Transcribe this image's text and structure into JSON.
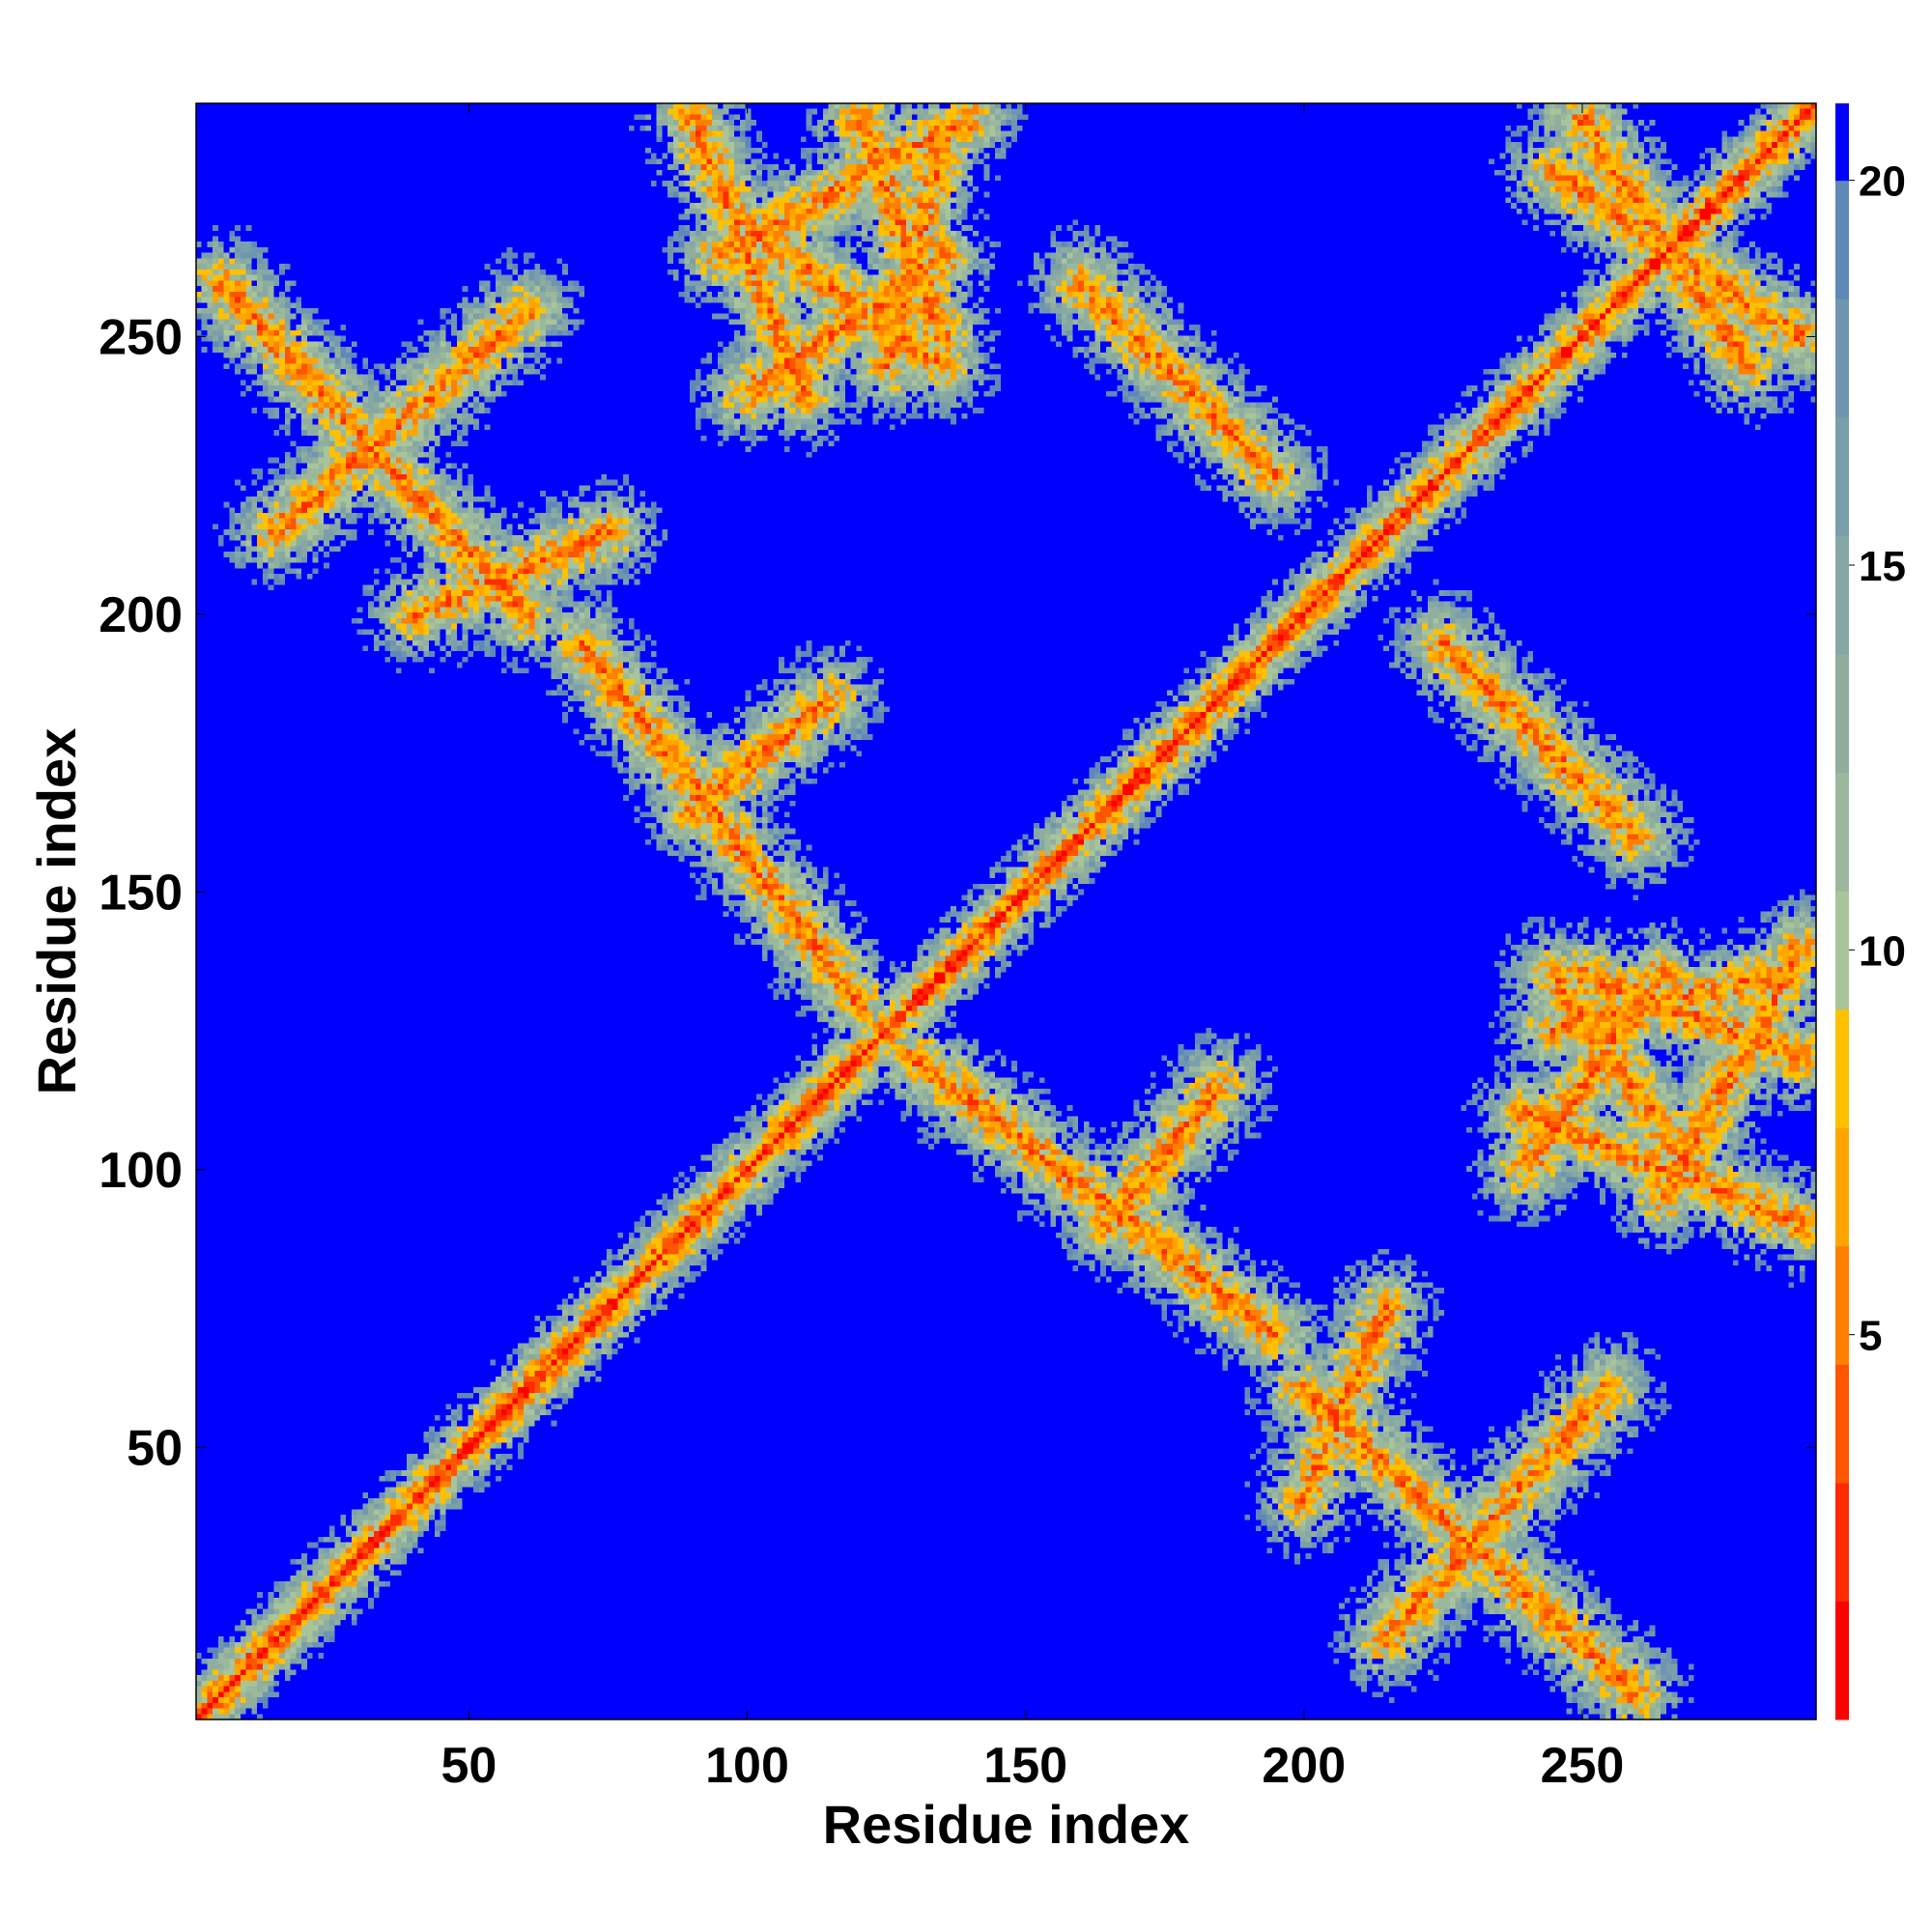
{
  "chart_data": {
    "type": "heatmap",
    "title": "",
    "xlabel": "Residue index",
    "ylabel": "Residue index",
    "n_residues": 292,
    "xlim": [
      1,
      292
    ],
    "ylim": [
      1,
      292
    ],
    "x_ticks": [
      50,
      100,
      150,
      200,
      250
    ],
    "y_ticks": [
      50,
      100,
      150,
      200,
      250
    ],
    "colorbar": {
      "ticks": [
        5,
        10,
        15,
        20
      ],
      "range": [
        0,
        21
      ],
      "cutoff_value": 20,
      "colors": [
        "#ff0000",
        "#ff2a00",
        "#ff5500",
        "#ff8000",
        "#ffa500",
        "#ffc000",
        "#a8c49a",
        "#9cb89c",
        "#8fae9e",
        "#86a8a4",
        "#7a9faa",
        "#6f96b0",
        "#5f88b8",
        "#0000ff"
      ]
    },
    "matrix_description": "Symmetric residue distance map; distance values capped at 20+",
    "contact_bands": [
      {
        "type": "diagonal",
        "note": "main diagonal, values near 0"
      },
      {
        "i_start": 5,
        "j_start": 260,
        "i_end": 60,
        "j_end": 200
      },
      {
        "i_start": 15,
        "j_start": 215,
        "i_end": 60,
        "j_end": 255
      },
      {
        "i_start": 40,
        "j_start": 200,
        "i_end": 75,
        "j_end": 215
      },
      {
        "i_start": 70,
        "j_start": 195,
        "i_end": 120,
        "j_end": 130
      },
      {
        "i_start": 90,
        "j_start": 165,
        "i_end": 115,
        "j_end": 185
      },
      {
        "i_start": 100,
        "j_start": 270,
        "i_end": 135,
        "j_end": 245
      },
      {
        "i_start": 125,
        "j_start": 245,
        "i_end": 135,
        "j_end": 285
      },
      {
        "i_start": 95,
        "j_start": 265,
        "i_end": 140,
        "j_end": 290
      },
      {
        "i_start": 160,
        "j_start": 260,
        "i_end": 190,
        "j_end": 230
      },
      {
        "i_start": 225,
        "j_start": 195,
        "i_end": 255,
        "j_end": 165
      },
      {
        "i_start": 245,
        "j_start": 280,
        "i_end": 290,
        "j_end": 250
      },
      {
        "i_start": 240,
        "j_start": 110,
        "i_end": 290,
        "j_end": 90
      },
      {
        "i_start": 250,
        "j_start": 135,
        "i_end": 290,
        "j_end": 120
      },
      {
        "i_start": 240,
        "j_start": 100,
        "i_end": 265,
        "j_end": 135
      }
    ]
  }
}
